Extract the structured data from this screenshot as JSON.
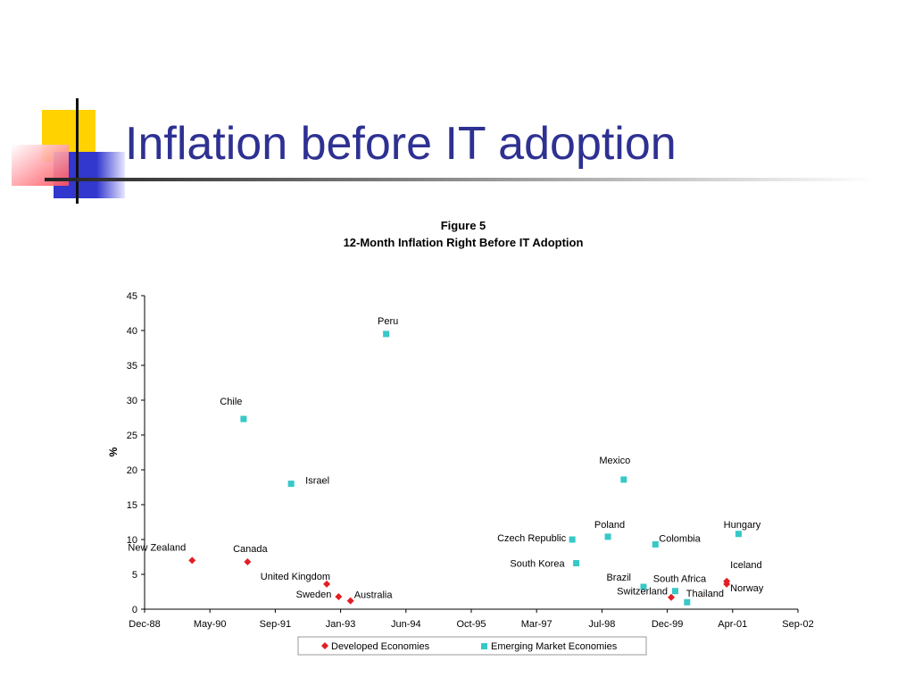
{
  "slide": {
    "title": "Inflation before IT adoption"
  },
  "colors": {
    "title": "#2e3192",
    "developed": "#e31e24",
    "emerging": "#37c8c8",
    "logo_yellow": "#ffd200",
    "logo_blue": "#3237cd",
    "logo_red": "#ff4d5a"
  },
  "chart_data": {
    "type": "scatter",
    "title": "Figure 5",
    "subtitle": "12-Month Inflation Right Before IT Adoption",
    "ylabel": "%",
    "xlabel": "",
    "ylim": [
      0,
      45
    ],
    "yticks": [
      0,
      5,
      10,
      15,
      20,
      25,
      30,
      35,
      40,
      45
    ],
    "xlim": [
      "1988-12",
      "2002-09"
    ],
    "xticks": [
      "Dec-88",
      "May-90",
      "Sep-91",
      "Jan-93",
      "Jun-94",
      "Oct-95",
      "Mar-97",
      "Jul-98",
      "Dec-99",
      "Apr-01",
      "Sep-02"
    ],
    "grid": false,
    "legend_position": "bottom",
    "series": [
      {
        "name": "Developed Economies",
        "marker": "diamond",
        "color": "#e31e24",
        "points": [
          {
            "label": "New Zealand",
            "x": "1989-12",
            "y": 7.0
          },
          {
            "label": "Canada",
            "x": "1991-02",
            "y": 6.8
          },
          {
            "label": "United Kingdom",
            "x": "1992-10",
            "y": 3.6
          },
          {
            "label": "Sweden",
            "x": "1993-01",
            "y": 1.8
          },
          {
            "label": "Australia",
            "x": "1993-04",
            "y": 1.2
          },
          {
            "label": "Switzerland",
            "x": "2000-01",
            "y": 1.7
          },
          {
            "label": "Iceland",
            "x": "2001-03",
            "y": 4.0
          },
          {
            "label": "Norway",
            "x": "2001-03",
            "y": 3.6
          }
        ]
      },
      {
        "name": "Emerging Market Economies",
        "marker": "square",
        "color": "#37c8c8",
        "points": [
          {
            "label": "Chile",
            "x": "1991-01",
            "y": 27.3
          },
          {
            "label": "Israel",
            "x": "1992-01",
            "y": 18.0
          },
          {
            "label": "Peru",
            "x": "1994-01",
            "y": 39.5
          },
          {
            "label": "Czech Republic",
            "x": "1997-12",
            "y": 10.0
          },
          {
            "label": "South Korea",
            "x": "1998-01",
            "y": 6.6
          },
          {
            "label": "Poland",
            "x": "1998-09",
            "y": 10.4
          },
          {
            "label": "Mexico",
            "x": "1999-01",
            "y": 18.6
          },
          {
            "label": "Brazil",
            "x": "1999-06",
            "y": 3.2
          },
          {
            "label": "Colombia",
            "x": "1999-09",
            "y": 9.3
          },
          {
            "label": "South Africa",
            "x": "2000-02",
            "y": 2.6
          },
          {
            "label": "Thailand",
            "x": "2000-05",
            "y": 1.0
          },
          {
            "label": "Hungary",
            "x": "2001-06",
            "y": 10.8
          }
        ]
      }
    ]
  }
}
